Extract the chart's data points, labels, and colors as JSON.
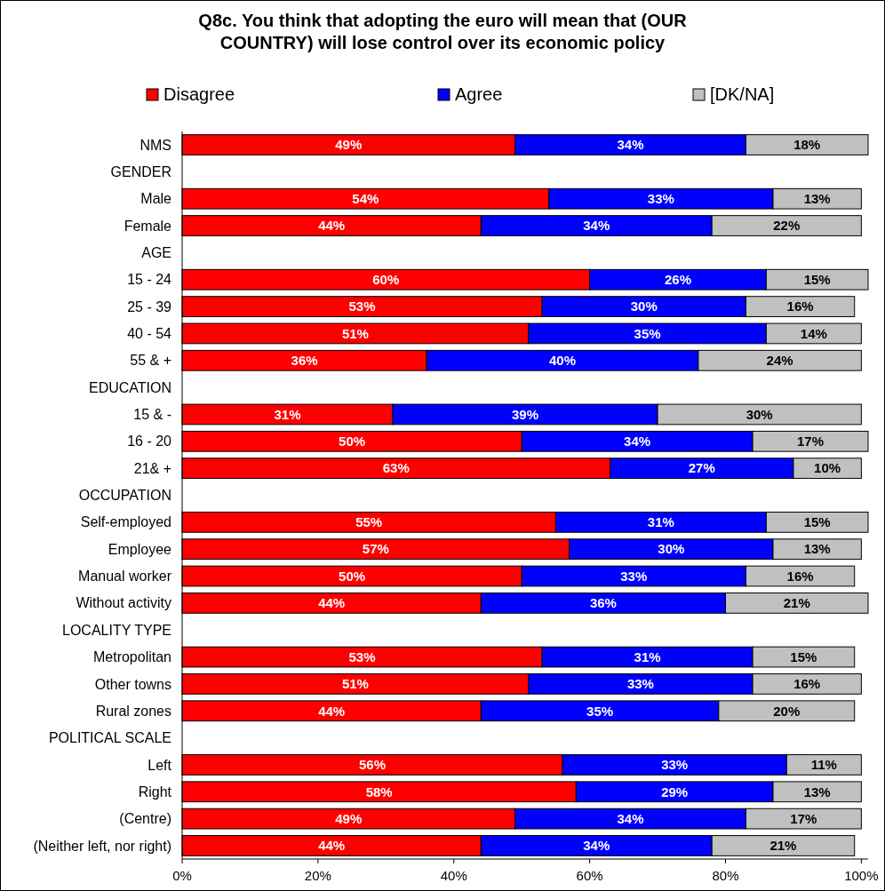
{
  "chart_data": {
    "type": "bar",
    "orientation": "horizontal",
    "stacked": true,
    "title": "Q8c. You think that adopting the euro will mean that (OUR COUNTRY) will lose control over its economic policy",
    "categories": [
      "NMS",
      "GENDER",
      "Male",
      "Female",
      "AGE",
      "15 - 24",
      "25 - 39",
      "40 - 54",
      "55 & +",
      "EDUCATION",
      "15 & -",
      "16 - 20",
      "21& +",
      "OCCUPATION",
      "Self-employed",
      "Employee",
      "Manual worker",
      "Without activity",
      "LOCALITY TYPE",
      "Metropolitan",
      "Other towns",
      "Rural zones",
      "POLITICAL SCALE",
      "Left",
      "Right",
      "(Centre)",
      "(Neither left, nor right)"
    ],
    "series": [
      {
        "name": "Disagree",
        "color": "#ff0000",
        "values": [
          49,
          null,
          54,
          44,
          null,
          60,
          53,
          51,
          36,
          null,
          31,
          50,
          63,
          null,
          55,
          57,
          50,
          44,
          null,
          53,
          51,
          44,
          null,
          56,
          58,
          49,
          44
        ],
        "value_labels": [
          "49%",
          null,
          "54%",
          "44%",
          null,
          "60%",
          "53%",
          "51%",
          "36%",
          null,
          "31%",
          "50%",
          "63%",
          null,
          "55%",
          "57%",
          "50%",
          "44%",
          null,
          "53%",
          "51%",
          "44%",
          null,
          "56%",
          "58%",
          "49%",
          "44%"
        ]
      },
      {
        "name": "Agree",
        "color": "#0000ff",
        "values": [
          34,
          null,
          33,
          34,
          null,
          26,
          30,
          35,
          40,
          null,
          39,
          34,
          27,
          null,
          31,
          30,
          33,
          36,
          null,
          31,
          33,
          35,
          null,
          33,
          29,
          34,
          34
        ],
        "value_labels": [
          "34%",
          null,
          "33%",
          "34%",
          null,
          "26%",
          "30%",
          "35%",
          "40%",
          null,
          "39%",
          "34%",
          "27%",
          null,
          "31%",
          "30%",
          "33%",
          "36%",
          null,
          "31%",
          "33%",
          "35%",
          null,
          "33%",
          "29%",
          "34%",
          "34%"
        ]
      },
      {
        "name": "[DK/NA]",
        "color": "#c0c0c0",
        "values": [
          18,
          null,
          13,
          22,
          null,
          15,
          16,
          14,
          24,
          null,
          30,
          17,
          10,
          null,
          15,
          13,
          16,
          21,
          null,
          15,
          16,
          20,
          null,
          11,
          13,
          17,
          21
        ],
        "value_labels": [
          "18%",
          null,
          "13%",
          "22%",
          null,
          "15%",
          "16%",
          "14%",
          "24%",
          null,
          "30%",
          "17%",
          "10%",
          null,
          "15%",
          "13%",
          "16%",
          "21%",
          null,
          "15%",
          "16%",
          "20%",
          null,
          "11%",
          "13%",
          "17%",
          "21%"
        ]
      }
    ],
    "xlim": [
      0,
      101
    ],
    "xticks": [
      {
        "value": 0,
        "label": "0%"
      },
      {
        "value": 20,
        "label": "20%"
      },
      {
        "value": 40,
        "label": "40%"
      },
      {
        "value": 60,
        "label": "60%"
      },
      {
        "value": 80,
        "label": "80%"
      },
      {
        "value": 100,
        "label": "100%"
      }
    ],
    "legend": "top",
    "grid": false
  }
}
